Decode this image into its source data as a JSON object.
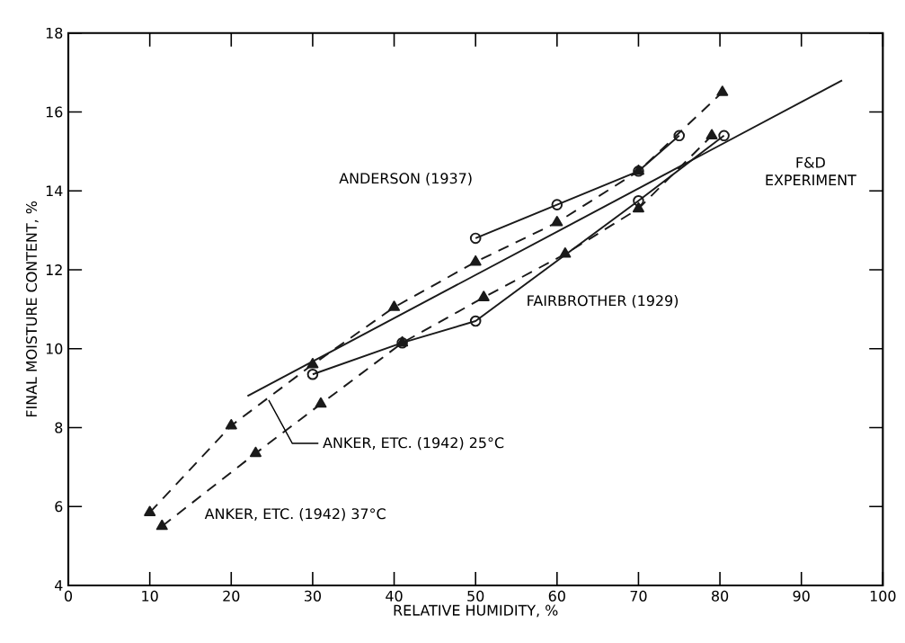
{
  "chart_data": {
    "type": "line",
    "xlabel": "RELATIVE HUMIDITY, %",
    "ylabel": "FINAL MOISTURE CONTENT, %",
    "xlim": [
      0,
      100
    ],
    "ylim": [
      4,
      18
    ],
    "xticks": [
      0,
      10,
      20,
      30,
      40,
      50,
      60,
      70,
      80,
      90,
      100
    ],
    "yticks": [
      4,
      6,
      8,
      10,
      12,
      14,
      16,
      18
    ],
    "grid": false,
    "series": [
      {
        "color": "#1a1a1a",
        "marker": "triangle",
        "line_style": "dashed",
        "x": [
          10,
          20,
          30,
          40,
          50,
          60,
          70,
          80.3
        ],
        "values": [
          5.85,
          8.05,
          9.6,
          11.05,
          12.2,
          13.2,
          14.5,
          16.5
        ]
      },
      {
        "color": "#1a1a1a",
        "marker": "triangle",
        "line_style": "dashed",
        "x": [
          11.5,
          23,
          31,
          41,
          51,
          61,
          70,
          79
        ],
        "values": [
          5.5,
          7.35,
          8.6,
          10.15,
          11.3,
          12.4,
          13.55,
          15.4
        ]
      },
      {
        "color": "#1a1a1a",
        "marker": "circle",
        "line_style": "solid",
        "x": [
          50,
          60,
          70,
          75
        ],
        "values": [
          12.8,
          13.65,
          14.5,
          15.4
        ]
      },
      {
        "color": "#1a1a1a",
        "marker": "circle",
        "line_style": "solid",
        "x": [
          30,
          41,
          50,
          70,
          80.5
        ],
        "values": [
          9.35,
          10.15,
          10.7,
          13.75,
          15.4
        ]
      },
      {
        "color": "#1a1a1a",
        "marker": "none",
        "line_style": "solid",
        "x": [
          22,
          95
        ],
        "values": [
          8.8,
          16.8
        ]
      }
    ],
    "annotations": [
      "ANDERSON (1937)",
      "FAIRBROTHER (1929)",
      "F&D EXPERIMENT",
      {
        "text": "ANKER, ETC. (1942) 25°C",
        "x": 24.6,
        "y": 8.7
      },
      "ANKER, ETC. (1942) 37°C"
    ]
  }
}
